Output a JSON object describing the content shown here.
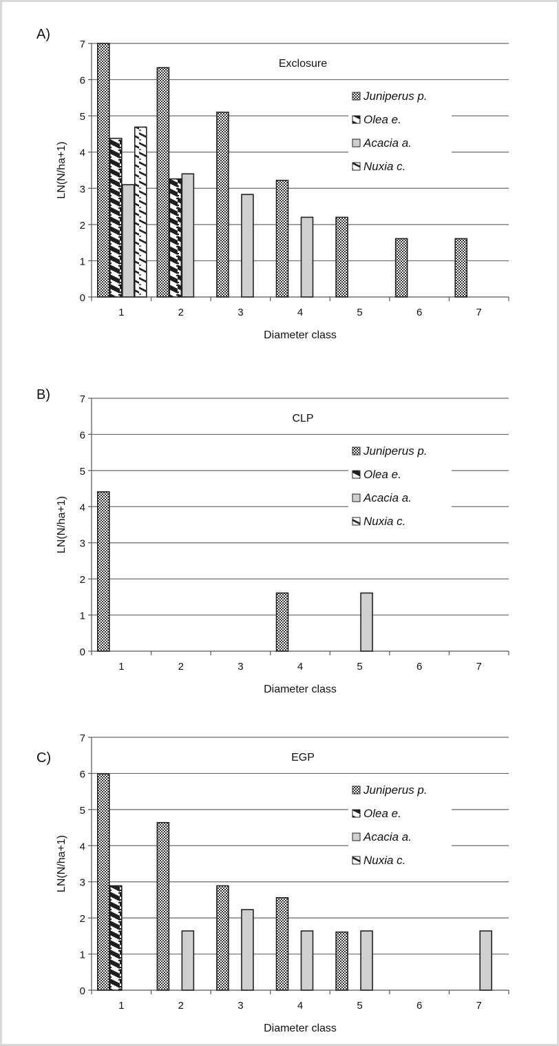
{
  "colors": {
    "juniperus": "#3a3a3a",
    "olea": "#1e1e1e",
    "acacia": "#cfcfcf",
    "nuxia": "#ffffff",
    "grid": "#6a6a6a",
    "frame": "#d9d9d9"
  },
  "chart_data": [
    {
      "panel_label": "A)",
      "type": "bar",
      "title": "Exclosure",
      "xlabel": "Diameter class",
      "ylabel": "LN(N/ha+1)",
      "ylim": [
        0,
        7
      ],
      "yticks": [
        "0",
        "1",
        "2",
        "3",
        "4",
        "5",
        "6",
        "7"
      ],
      "categories": [
        "1",
        "2",
        "3",
        "4",
        "5",
        "6",
        "7"
      ],
      "grid": true,
      "legend_position": "right",
      "series": [
        {
          "name": "Juniperus p.",
          "pattern": "checker",
          "values": [
            7.0,
            6.33,
            5.1,
            3.22,
            2.2,
            1.61,
            1.61
          ]
        },
        {
          "name": "Olea e.",
          "pattern": "diagonal-dark",
          "values": [
            4.38,
            3.26,
            0,
            0,
            0,
            0,
            0
          ]
        },
        {
          "name": "Acacia a.",
          "pattern": "solid-gray",
          "values": [
            3.1,
            3.4,
            2.83,
            2.2,
            0,
            0,
            0
          ]
        },
        {
          "name": "Nuxia c.",
          "pattern": "diagonal-light",
          "values": [
            4.69,
            0,
            0,
            0,
            0,
            0,
            0
          ]
        }
      ]
    },
    {
      "panel_label": "B)",
      "type": "bar",
      "title": "CLP",
      "xlabel": "Diameter class",
      "ylabel": "LN(N/ha+1)",
      "ylim": [
        0,
        7
      ],
      "yticks": [
        "0",
        "1",
        "2",
        "3",
        "4",
        "5",
        "6",
        "7"
      ],
      "categories": [
        "1",
        "2",
        "3",
        "4",
        "5",
        "6",
        "7"
      ],
      "grid": true,
      "legend_position": "right",
      "series": [
        {
          "name": "Juniperus p.",
          "pattern": "checker",
          "values": [
            4.41,
            0,
            0,
            1.61,
            0,
            0,
            0
          ]
        },
        {
          "name": "Olea e.",
          "pattern": "diagonal-dark",
          "values": [
            0,
            0,
            0,
            0,
            0,
            0,
            0
          ]
        },
        {
          "name": "Acacia a.",
          "pattern": "solid-gray",
          "values": [
            0,
            0,
            0,
            0,
            1.61,
            0,
            0
          ]
        },
        {
          "name": "Nuxia c.",
          "pattern": "diagonal-light",
          "values": [
            0,
            0,
            0,
            0,
            0,
            0,
            0
          ]
        }
      ]
    },
    {
      "panel_label": "C)",
      "type": "bar",
      "title": "EGP",
      "xlabel": "Diameter class",
      "ylabel": "LN(N/ha+1)",
      "ylim": [
        0,
        7
      ],
      "yticks": [
        "0",
        "1",
        "2",
        "3",
        "4",
        "5",
        "6",
        "7"
      ],
      "categories": [
        "1",
        "2",
        "3",
        "4",
        "5",
        "6",
        "7"
      ],
      "grid": true,
      "legend_position": "right",
      "series": [
        {
          "name": "Juniperus p.",
          "pattern": "checker",
          "values": [
            5.99,
            4.64,
            2.89,
            2.56,
            1.61,
            0,
            0
          ]
        },
        {
          "name": "Olea e.",
          "pattern": "diagonal-dark",
          "values": [
            2.89,
            0,
            0,
            0,
            0,
            0,
            0
          ]
        },
        {
          "name": "Acacia a.",
          "pattern": "solid-gray",
          "values": [
            0,
            1.64,
            2.23,
            1.64,
            1.64,
            0,
            1.64
          ]
        },
        {
          "name": "Nuxia c.",
          "pattern": "diagonal-light",
          "values": [
            0,
            0,
            0,
            0,
            0,
            0,
            0
          ]
        }
      ]
    }
  ]
}
